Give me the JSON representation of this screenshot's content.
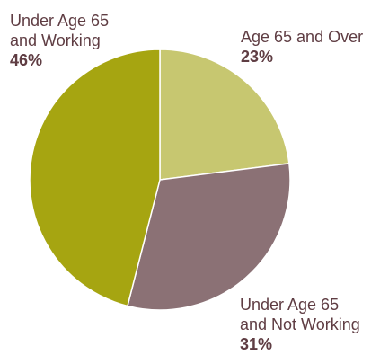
{
  "chart_data": {
    "type": "pie",
    "categories": [
      "Age 65 and Over",
      "Under Age 65\nand Not Working",
      "Under Age 65\nand Working"
    ],
    "values": [
      23,
      31,
      46
    ],
    "value_labels": [
      "23%",
      "31%",
      "46%"
    ],
    "colors": [
      "#c7c770",
      "#8b7175",
      "#a6a511"
    ],
    "label_color": "#5f3d43",
    "legend": "none",
    "grid": false
  }
}
